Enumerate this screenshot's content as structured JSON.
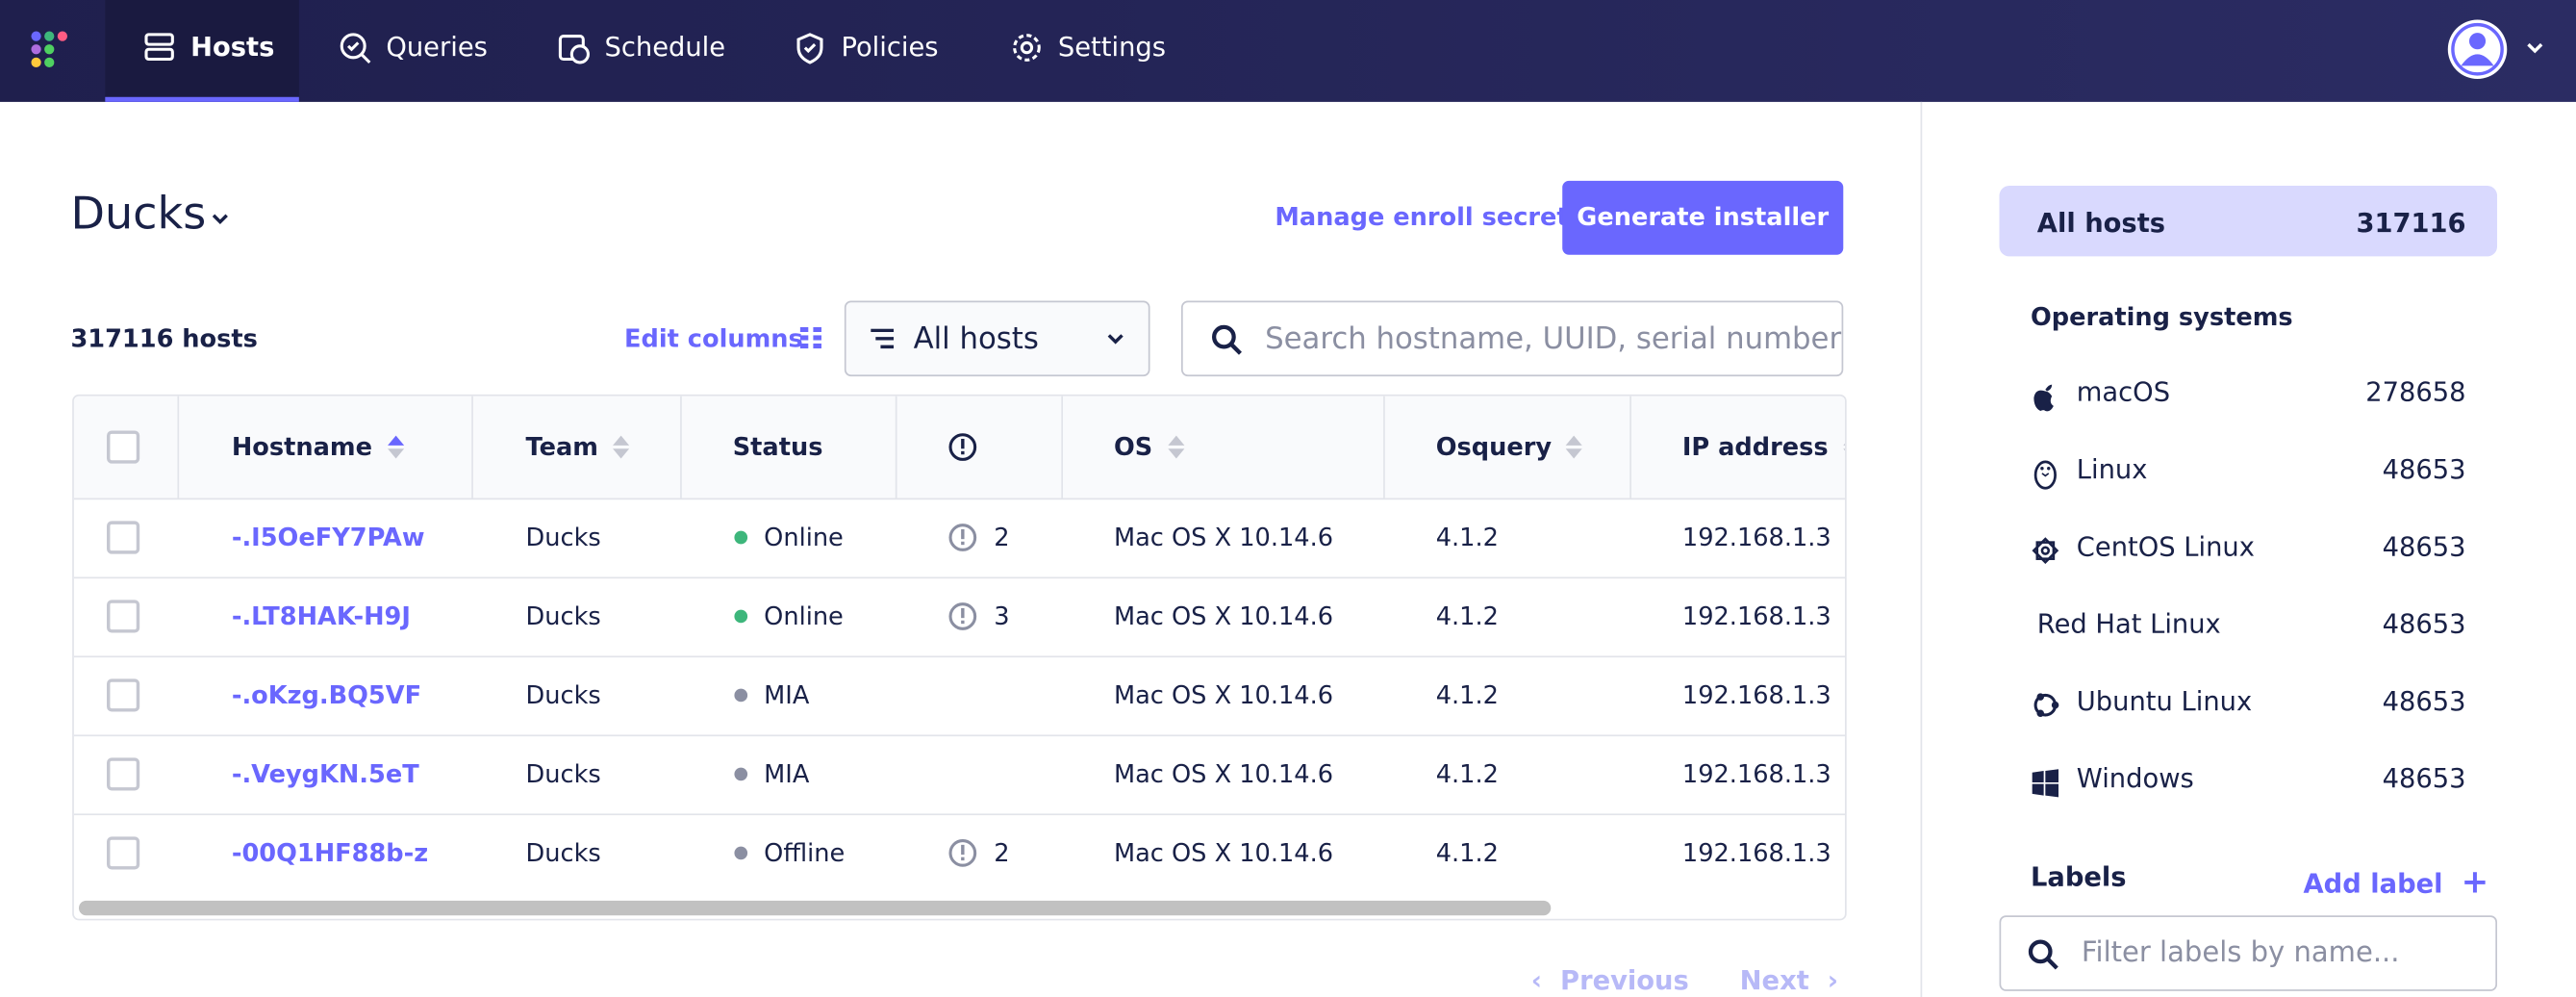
{
  "nav": {
    "items": [
      "Hosts",
      "Queries",
      "Schedule",
      "Policies",
      "Settings"
    ]
  },
  "header": {
    "team": "Ducks",
    "manage": "Manage enroll secret",
    "generate": "Generate installer"
  },
  "toolbar": {
    "count": "317116 hosts",
    "edit_columns": "Edit columns",
    "filter": "All hosts",
    "search": "Search hostname, UUID, serial number, c"
  },
  "table": {
    "columns": [
      "Hostname",
      "Team",
      "Status",
      "OS",
      "Osquery",
      "IP address"
    ],
    "rows": [
      {
        "hostname": "-.I5OeFY7PAw",
        "team": "Ducks",
        "status": "Online",
        "issues": "2",
        "os": "Mac OS X 10.14.6",
        "osquery": "4.1.2",
        "ip": "192.168.1.3"
      },
      {
        "hostname": "-.LT8HAK-H9J",
        "team": "Ducks",
        "status": "Online",
        "issues": "3",
        "os": "Mac OS X 10.14.6",
        "osquery": "4.1.2",
        "ip": "192.168.1.3"
      },
      {
        "hostname": "-.oKzg.BQ5VF",
        "team": "Ducks",
        "status": "MIA",
        "issues": null,
        "os": "Mac OS X 10.14.6",
        "osquery": "4.1.2",
        "ip": "192.168.1.3"
      },
      {
        "hostname": "-.VeygKN.5eT",
        "team": "Ducks",
        "status": "MIA",
        "issues": null,
        "os": "Mac OS X 10.14.6",
        "osquery": "4.1.2",
        "ip": "192.168.1.3"
      },
      {
        "hostname": "-00Q1HF88b-z",
        "team": "Ducks",
        "status": "Offline",
        "issues": "2",
        "os": "Mac OS X 10.14.6",
        "osquery": "4.1.2",
        "ip": "192.168.1.3"
      }
    ]
  },
  "pagination": {
    "previous": "Previous",
    "next": "Next"
  },
  "sidebar": {
    "all_hosts": {
      "label": "All hosts",
      "count": "317116"
    },
    "os_title": "Operating systems",
    "os": [
      {
        "name": "macOS",
        "count": "278658"
      },
      {
        "name": "Linux",
        "count": "48653"
      },
      {
        "name": "CentOS Linux",
        "count": "48653"
      },
      {
        "name": "Red Hat Linux",
        "count": "48653"
      },
      {
        "name": "Ubuntu Linux",
        "count": "48653"
      },
      {
        "name": "Windows",
        "count": "48653"
      }
    ],
    "labels_title": "Labels",
    "add_label": "Add label",
    "filter_placeholder": "Filter labels by name..."
  }
}
